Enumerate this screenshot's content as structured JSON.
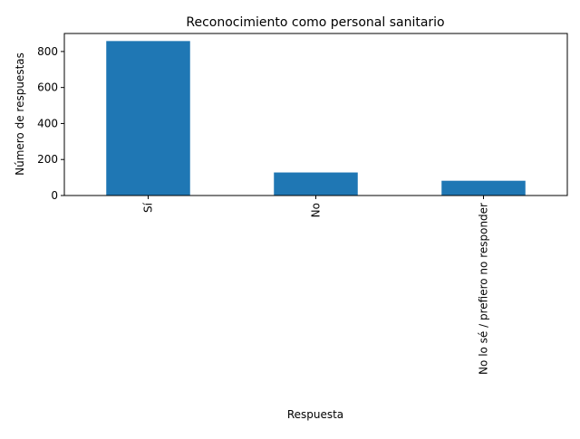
{
  "chart_data": {
    "type": "bar",
    "title": "Reconocimiento como personal sanitario",
    "xlabel": "Respuesta",
    "ylabel": "Número de respuestas",
    "categories": [
      "Sí",
      "No",
      "No lo sé / prefiero no responder"
    ],
    "values": [
      858,
      128,
      82
    ],
    "ylim": [
      0,
      900
    ],
    "yticks": [
      0,
      200,
      400,
      600,
      800
    ],
    "grid": false,
    "legend": "none",
    "colors": {
      "bar": "#1f77b4"
    }
  }
}
